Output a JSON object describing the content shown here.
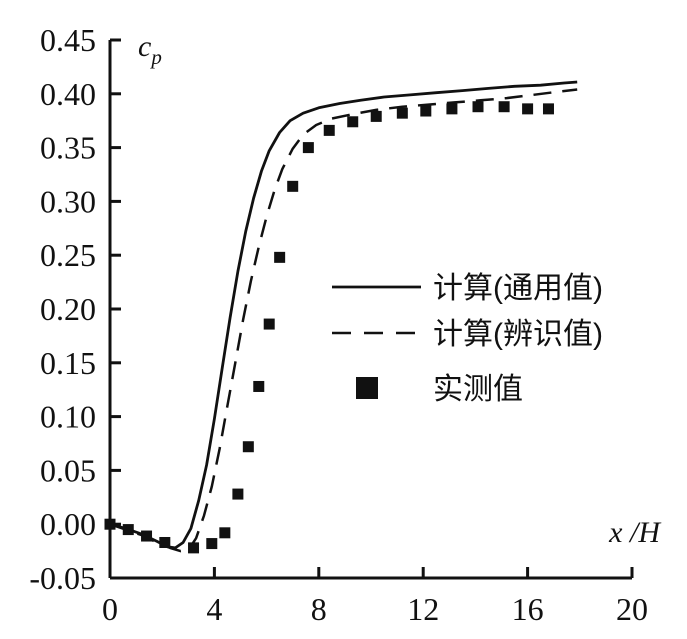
{
  "figure": {
    "background": "#ffffff",
    "ink_color": "#111111"
  },
  "chart_data": {
    "type": "line",
    "title": "",
    "xlabel": "x /H",
    "ylabel_main": "c",
    "ylabel_sub": "p",
    "xlim": [
      0,
      20
    ],
    "ylim": [
      -0.05,
      0.45
    ],
    "grid": false,
    "legend_position": "middle-right-inside",
    "x_ticks": [
      0,
      4,
      8,
      12,
      16,
      20
    ],
    "x_tick_labels": [
      "0",
      "4",
      "8",
      "12",
      "16",
      "20"
    ],
    "y_ticks": [
      -0.05,
      0.0,
      0.05,
      0.1,
      0.15,
      0.2,
      0.25,
      0.3,
      0.35,
      0.4,
      0.45
    ],
    "y_tick_labels": [
      "-0.05",
      "0.00",
      "0.05",
      "0.10",
      "0.15",
      "0.20",
      "0.25",
      "0.30",
      "0.35",
      "0.40",
      "0.45"
    ],
    "series": [
      {
        "name": "计算(通用值)",
        "style": "solid-line",
        "points": [
          [
            0,
            0.0
          ],
          [
            0.6,
            -0.004
          ],
          [
            1.2,
            -0.009
          ],
          [
            1.8,
            -0.016
          ],
          [
            2.2,
            -0.021
          ],
          [
            2.5,
            -0.022
          ],
          [
            2.8,
            -0.017
          ],
          [
            3.1,
            -0.004
          ],
          [
            3.4,
            0.022
          ],
          [
            3.7,
            0.055
          ],
          [
            4.0,
            0.098
          ],
          [
            4.3,
            0.145
          ],
          [
            4.6,
            0.192
          ],
          [
            4.9,
            0.235
          ],
          [
            5.2,
            0.272
          ],
          [
            5.5,
            0.303
          ],
          [
            5.8,
            0.328
          ],
          [
            6.1,
            0.347
          ],
          [
            6.5,
            0.364
          ],
          [
            6.9,
            0.375
          ],
          [
            7.4,
            0.382
          ],
          [
            8.0,
            0.387
          ],
          [
            8.8,
            0.391
          ],
          [
            9.6,
            0.394
          ],
          [
            10.5,
            0.397
          ],
          [
            11.5,
            0.399
          ],
          [
            12.5,
            0.401
          ],
          [
            13.5,
            0.403
          ],
          [
            14.5,
            0.405
          ],
          [
            15.5,
            0.407
          ],
          [
            16.5,
            0.408
          ],
          [
            17.4,
            0.41
          ],
          [
            17.9,
            0.411
          ]
        ]
      },
      {
        "name": "计算(辨识值)",
        "style": "dashed-line",
        "points": [
          [
            0,
            0.0
          ],
          [
            0.6,
            -0.005
          ],
          [
            1.2,
            -0.01
          ],
          [
            1.8,
            -0.017
          ],
          [
            2.3,
            -0.022
          ],
          [
            2.7,
            -0.025
          ],
          [
            3.0,
            -0.024
          ],
          [
            3.3,
            -0.013
          ],
          [
            3.6,
            0.008
          ],
          [
            3.9,
            0.035
          ],
          [
            4.2,
            0.07
          ],
          [
            4.5,
            0.11
          ],
          [
            4.8,
            0.15
          ],
          [
            5.1,
            0.19
          ],
          [
            5.4,
            0.226
          ],
          [
            5.7,
            0.258
          ],
          [
            6.0,
            0.286
          ],
          [
            6.3,
            0.31
          ],
          [
            6.6,
            0.33
          ],
          [
            7.0,
            0.349
          ],
          [
            7.4,
            0.362
          ],
          [
            7.9,
            0.371
          ],
          [
            8.5,
            0.377
          ],
          [
            9.3,
            0.381
          ],
          [
            10.2,
            0.385
          ],
          [
            11.2,
            0.388
          ],
          [
            12.2,
            0.39
          ],
          [
            13.2,
            0.392
          ],
          [
            14.2,
            0.394
          ],
          [
            15.2,
            0.396
          ],
          [
            16.2,
            0.399
          ],
          [
            17.2,
            0.402
          ],
          [
            17.9,
            0.404
          ]
        ]
      },
      {
        "name": "实测值",
        "style": "square-markers",
        "points": [
          [
            0,
            0.0
          ],
          [
            0.7,
            -0.005
          ],
          [
            1.4,
            -0.011
          ],
          [
            2.1,
            -0.017
          ],
          [
            3.2,
            -0.022
          ],
          [
            3.9,
            -0.018
          ],
          [
            4.4,
            -0.008
          ],
          [
            4.9,
            0.028
          ],
          [
            5.3,
            0.072
          ],
          [
            5.7,
            0.128
          ],
          [
            6.1,
            0.186
          ],
          [
            6.5,
            0.248
          ],
          [
            7.0,
            0.314
          ],
          [
            7.6,
            0.35
          ],
          [
            8.4,
            0.366
          ],
          [
            9.3,
            0.374
          ],
          [
            10.2,
            0.379
          ],
          [
            11.2,
            0.382
          ],
          [
            12.1,
            0.384
          ],
          [
            13.1,
            0.386
          ],
          [
            14.1,
            0.388
          ],
          [
            15.1,
            0.388
          ],
          [
            16.0,
            0.386
          ],
          [
            16.8,
            0.386
          ]
        ]
      }
    ]
  }
}
